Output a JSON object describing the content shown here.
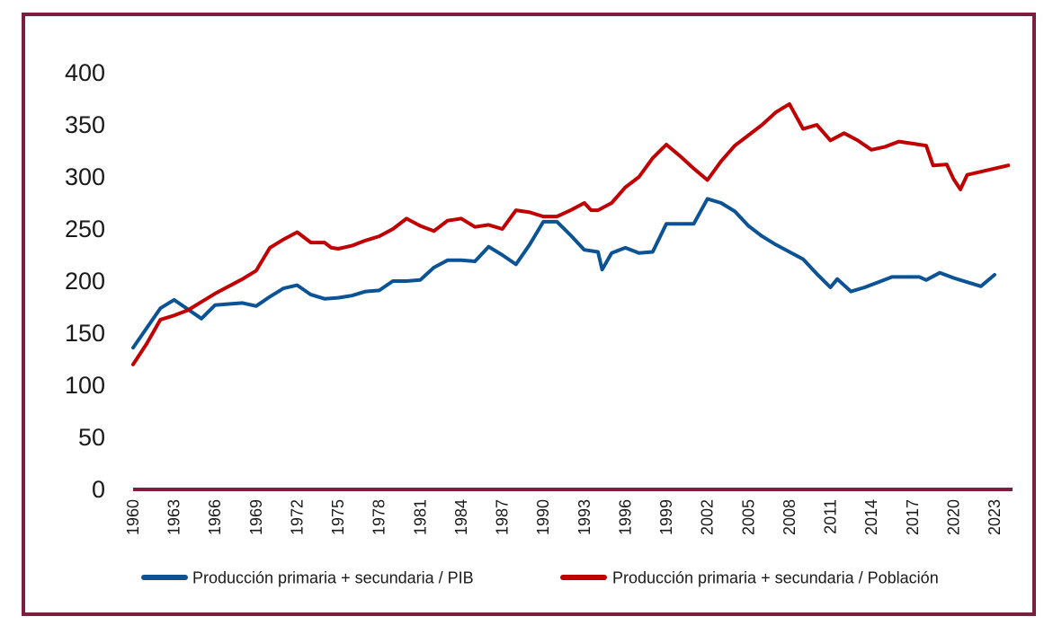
{
  "chart_data": {
    "type": "line",
    "title": "",
    "xlabel": "",
    "ylabel": "",
    "ylim": [
      0,
      400
    ],
    "yticks": [
      0,
      50,
      100,
      150,
      200,
      250,
      300,
      350,
      400
    ],
    "xticks": [
      1960,
      1963,
      1966,
      1969,
      1972,
      1975,
      1978,
      1981,
      1984,
      1987,
      1990,
      1993,
      1996,
      1999,
      2002,
      2005,
      2008,
      2011,
      2014,
      2017,
      2020,
      2023
    ],
    "xlim": [
      1960,
      2023
    ],
    "legend_position": "bottom",
    "series": [
      {
        "name": "Producción primaria + secundaria / PIB",
        "color": "#0b5394",
        "points": [
          [
            1960,
            136
          ],
          [
            1961,
            155
          ],
          [
            1962,
            174
          ],
          [
            1963,
            182
          ],
          [
            1964,
            173
          ],
          [
            1965,
            164
          ],
          [
            1966,
            177
          ],
          [
            1967,
            178
          ],
          [
            1968,
            179
          ],
          [
            1969,
            176
          ],
          [
            1970,
            185
          ],
          [
            1971,
            193
          ],
          [
            1972,
            196
          ],
          [
            1973,
            187
          ],
          [
            1974,
            183
          ],
          [
            1975,
            184
          ],
          [
            1976,
            186
          ],
          [
            1977,
            190
          ],
          [
            1978,
            191
          ],
          [
            1979,
            200
          ],
          [
            1980,
            200
          ],
          [
            1981,
            201
          ],
          [
            1982,
            213
          ],
          [
            1983,
            220
          ],
          [
            1984,
            220
          ],
          [
            1985,
            219
          ],
          [
            1986,
            233
          ],
          [
            1987,
            225
          ],
          [
            1988,
            216
          ],
          [
            1989,
            235
          ],
          [
            1990,
            257
          ],
          [
            1991,
            257
          ],
          [
            1992,
            244
          ],
          [
            1993,
            230
          ],
          [
            1994,
            228
          ],
          [
            1994.3,
            211
          ],
          [
            1995,
            227
          ],
          [
            1996,
            232
          ],
          [
            1997,
            227
          ],
          [
            1998,
            228
          ],
          [
            1999,
            255
          ],
          [
            2000,
            255
          ],
          [
            2001,
            255
          ],
          [
            2002,
            279
          ],
          [
            2003,
            275
          ],
          [
            2004,
            267
          ],
          [
            2005,
            253
          ],
          [
            2006,
            243
          ],
          [
            2007,
            235
          ],
          [
            2008,
            228
          ],
          [
            2009,
            221
          ],
          [
            2010,
            207
          ],
          [
            2011,
            194
          ],
          [
            2011.5,
            202
          ],
          [
            2012.5,
            190
          ],
          [
            2013.5,
            194
          ],
          [
            2014.5,
            199
          ],
          [
            2015.5,
            204
          ],
          [
            2016.5,
            204
          ],
          [
            2017.5,
            204
          ],
          [
            2018,
            201
          ],
          [
            2019,
            208
          ],
          [
            2020,
            203
          ],
          [
            2021,
            199
          ],
          [
            2022,
            195
          ],
          [
            2023,
            206
          ]
        ]
      },
      {
        "name": "Producción primaria + secundaria / Población",
        "color": "#c00000",
        "points": [
          [
            1960,
            120
          ],
          [
            1961,
            140
          ],
          [
            1962,
            163
          ],
          [
            1963,
            167
          ],
          [
            1964,
            172
          ],
          [
            1965,
            180
          ],
          [
            1966,
            188
          ],
          [
            1967,
            195
          ],
          [
            1968,
            202
          ],
          [
            1969,
            210
          ],
          [
            1970,
            232
          ],
          [
            1971,
            240
          ],
          [
            1972,
            247
          ],
          [
            1973,
            237
          ],
          [
            1974,
            237
          ],
          [
            1974.5,
            232
          ],
          [
            1975,
            231
          ],
          [
            1976,
            234
          ],
          [
            1977,
            239
          ],
          [
            1978,
            243
          ],
          [
            1979,
            250
          ],
          [
            1980,
            260
          ],
          [
            1981,
            253
          ],
          [
            1982,
            248
          ],
          [
            1983,
            258
          ],
          [
            1984,
            260
          ],
          [
            1985,
            252
          ],
          [
            1986,
            254
          ],
          [
            1987,
            250
          ],
          [
            1988,
            268
          ],
          [
            1989,
            266
          ],
          [
            1990,
            262
          ],
          [
            1991,
            262
          ],
          [
            1992,
            268
          ],
          [
            1993,
            275
          ],
          [
            1993.5,
            268
          ],
          [
            1994,
            268
          ],
          [
            1995,
            275
          ],
          [
            1996,
            290
          ],
          [
            1997,
            300
          ],
          [
            1998,
            318
          ],
          [
            1999,
            331
          ],
          [
            2000,
            320
          ],
          [
            2001,
            308
          ],
          [
            2002,
            297
          ],
          [
            2003,
            315
          ],
          [
            2004,
            330
          ],
          [
            2005,
            340
          ],
          [
            2006,
            350
          ],
          [
            2007,
            362
          ],
          [
            2008,
            370
          ],
          [
            2009,
            346
          ],
          [
            2010,
            350
          ],
          [
            2011,
            335
          ],
          [
            2012,
            342
          ],
          [
            2013,
            335
          ],
          [
            2014,
            326
          ],
          [
            2015,
            329
          ],
          [
            2016,
            334
          ],
          [
            2017,
            332
          ],
          [
            2018,
            330
          ],
          [
            2018.5,
            311
          ],
          [
            2019.5,
            312
          ],
          [
            2020,
            298
          ],
          [
            2020.5,
            288
          ],
          [
            2021,
            302
          ],
          [
            2022,
            305
          ],
          [
            2023,
            308
          ],
          [
            2024,
            311
          ]
        ]
      }
    ]
  }
}
